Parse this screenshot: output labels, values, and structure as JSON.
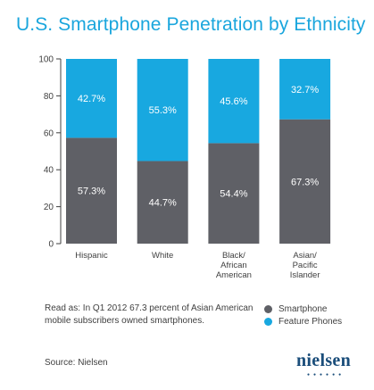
{
  "title": "U.S. Smartphone Penetration by Ethnicity",
  "note": "Read as: In Q1 2012 67.3 percent of Asian American mobile subscribers owned smartphones.",
  "source": "Source: Nielsen",
  "logo": "nielsen",
  "colors": {
    "smartphone": "#5f6066",
    "feature": "#18a8e0",
    "axis": "#3f3f3f",
    "label_on_bar": "#ffffff"
  },
  "chart_data": {
    "type": "bar",
    "stacked": true,
    "categories": [
      [
        "Hispanic"
      ],
      [
        "White"
      ],
      [
        "Black/",
        "African",
        "American"
      ],
      [
        "Asian/",
        "Pacific",
        "Islander"
      ]
    ],
    "series": [
      {
        "name": "Smartphone",
        "values": [
          57.3,
          44.7,
          54.4,
          67.3
        ],
        "labels": [
          "57.3%",
          "44.7%",
          "54.4%",
          "67.3%"
        ]
      },
      {
        "name": "Feature Phones",
        "values": [
          42.7,
          55.3,
          45.6,
          32.7
        ],
        "labels": [
          "42.7%",
          "55.3%",
          "45.6%",
          "32.7%"
        ]
      }
    ],
    "yticks": [
      "0",
      "20",
      "40",
      "60",
      "80",
      "100"
    ],
    "ylim": [
      0,
      100
    ],
    "legend_position": "bottom-right"
  }
}
